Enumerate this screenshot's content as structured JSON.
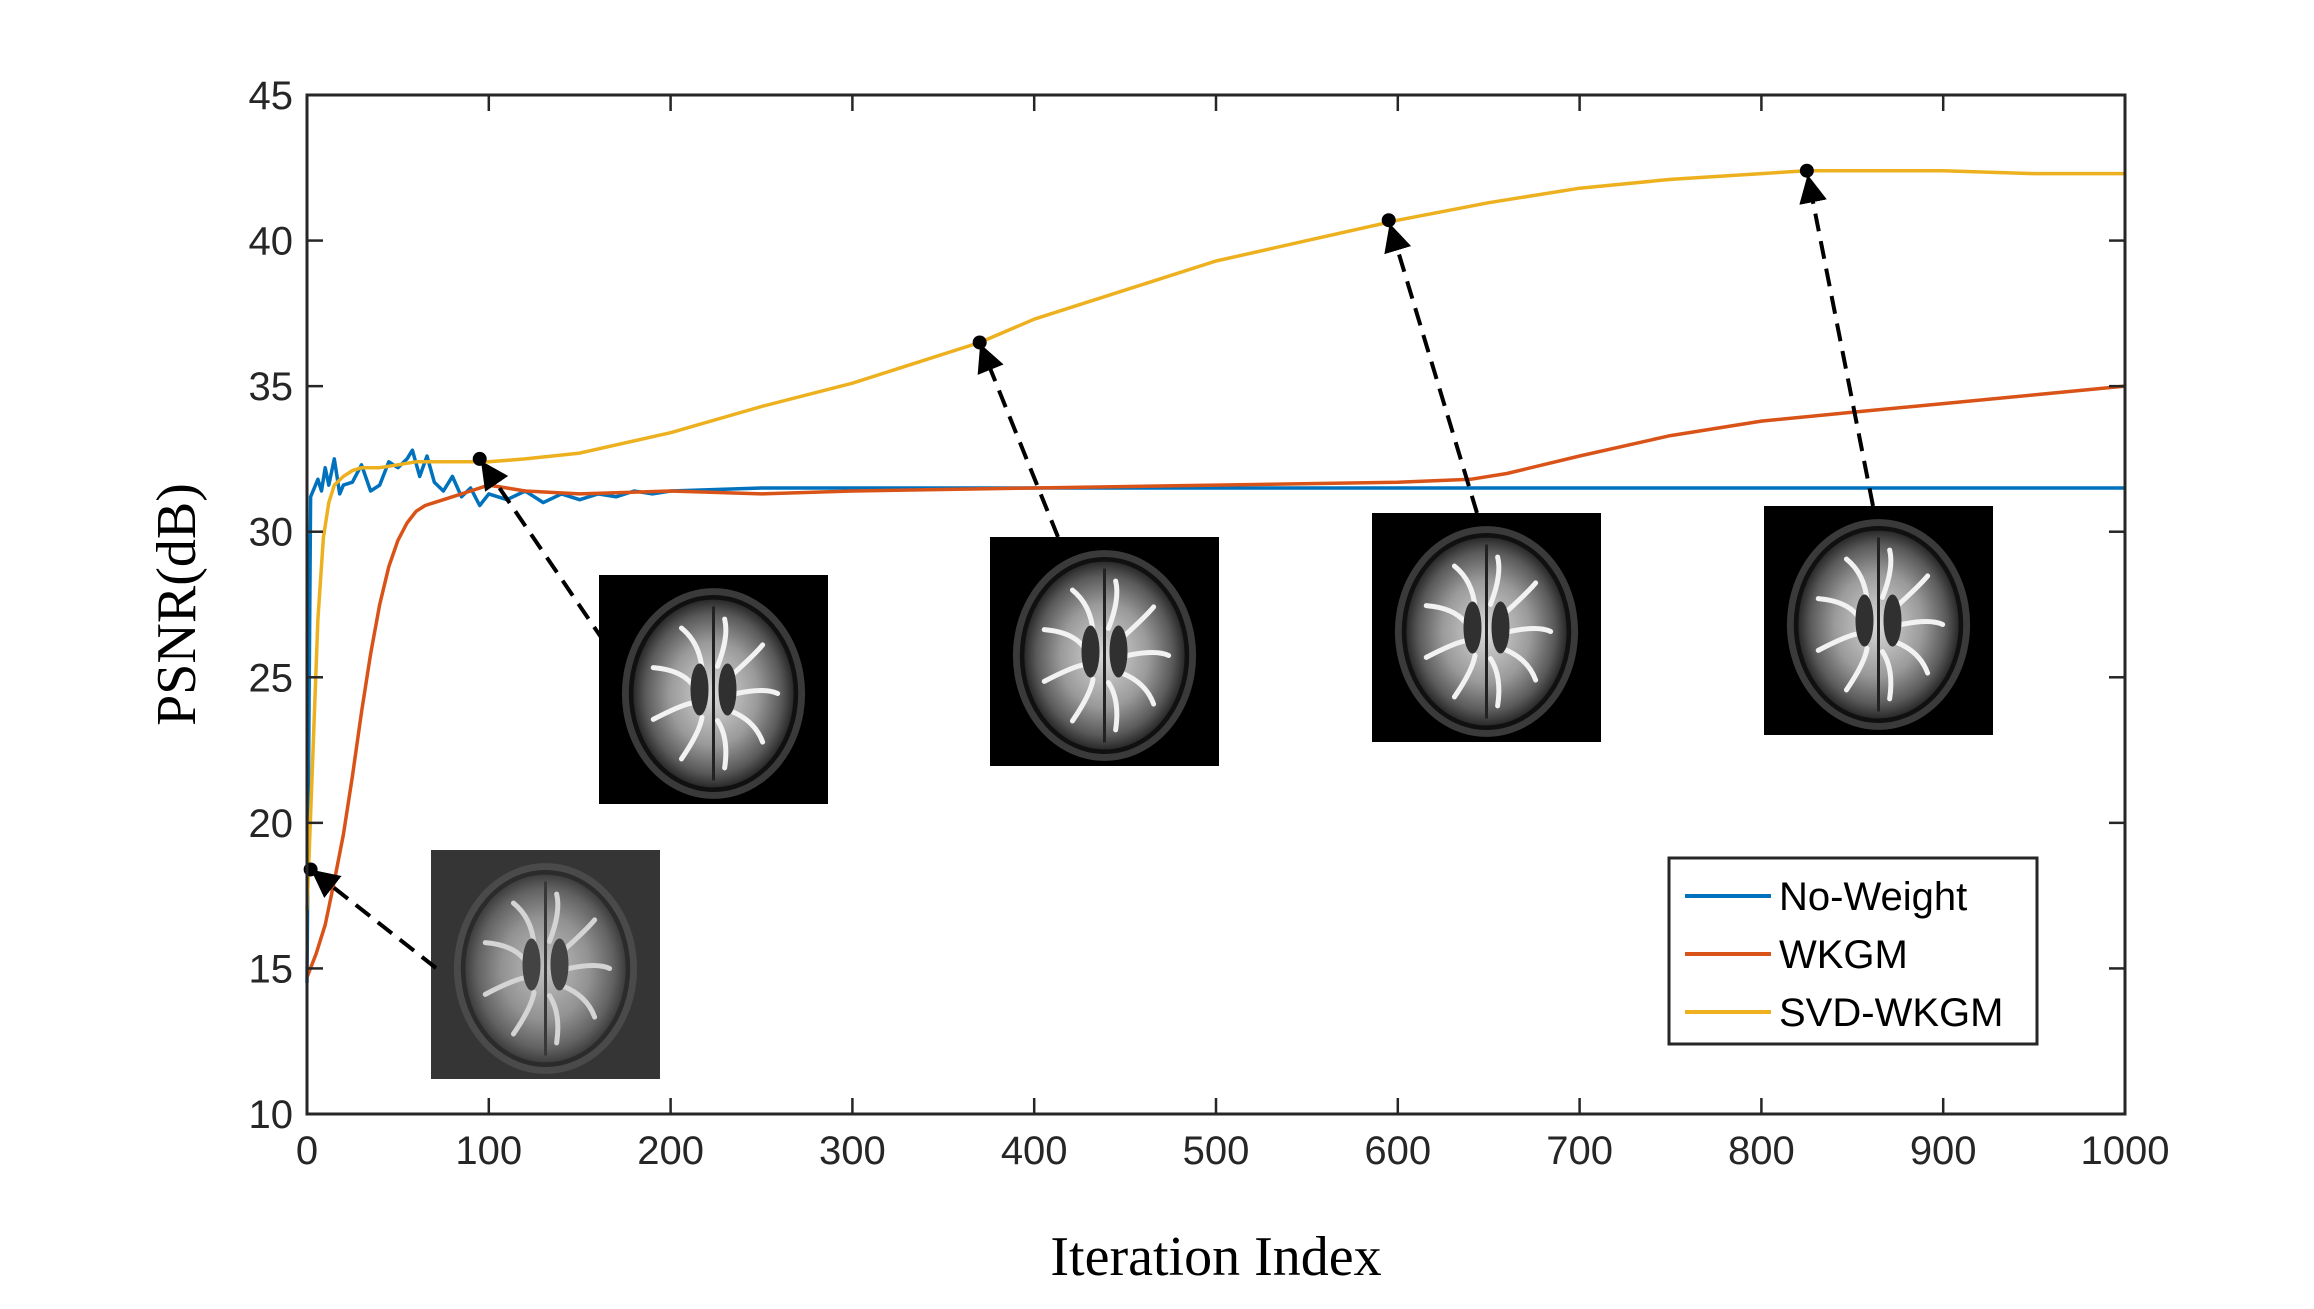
{
  "chart_data": {
    "type": "line",
    "title": "",
    "xlabel": "Iteration Index",
    "ylabel": "PSNR(dB)",
    "xlim": [
      0,
      1000
    ],
    "ylim": [
      10,
      45
    ],
    "xticks": [
      0,
      100,
      200,
      300,
      400,
      500,
      600,
      700,
      800,
      900,
      1000
    ],
    "yticks": [
      10,
      15,
      20,
      25,
      30,
      35,
      40,
      45
    ],
    "grid": false,
    "legend_position": "bottom-right",
    "series": [
      {
        "name": "No-Weight",
        "color": "#0072BD",
        "x": [
          0,
          2,
          4,
          6,
          8,
          10,
          12,
          15,
          18,
          20,
          25,
          30,
          35,
          40,
          45,
          50,
          55,
          58,
          62,
          66,
          70,
          75,
          80,
          85,
          90,
          95,
          100,
          110,
          120,
          130,
          140,
          150,
          160,
          170,
          180,
          190,
          200,
          250,
          300,
          400,
          500,
          600,
          700,
          800,
          900,
          1000
        ],
        "y": [
          14.5,
          31.2,
          31.5,
          31.8,
          31.4,
          32.2,
          31.6,
          32.5,
          31.3,
          31.6,
          31.7,
          32.3,
          31.4,
          31.6,
          32.4,
          32.2,
          32.5,
          32.8,
          31.9,
          32.6,
          31.7,
          31.4,
          31.9,
          31.2,
          31.5,
          30.9,
          31.3,
          31.1,
          31.4,
          31.0,
          31.3,
          31.1,
          31.3,
          31.2,
          31.4,
          31.3,
          31.4,
          31.5,
          31.5,
          31.5,
          31.5,
          31.5,
          31.5,
          31.5,
          31.5,
          31.5
        ]
      },
      {
        "name": "WKGM",
        "color": "#D95319",
        "x": [
          0,
          5,
          10,
          15,
          20,
          25,
          30,
          35,
          40,
          45,
          50,
          55,
          60,
          65,
          70,
          75,
          80,
          90,
          100,
          110,
          120,
          150,
          200,
          250,
          300,
          400,
          500,
          600,
          640,
          660,
          700,
          750,
          800,
          850,
          900,
          950,
          1000
        ],
        "y": [
          14.7,
          15.5,
          16.5,
          18.0,
          19.6,
          21.6,
          23.8,
          25.8,
          27.5,
          28.8,
          29.7,
          30.3,
          30.7,
          30.9,
          31.0,
          31.1,
          31.2,
          31.4,
          31.6,
          31.5,
          31.4,
          31.3,
          31.4,
          31.3,
          31.4,
          31.5,
          31.6,
          31.7,
          31.8,
          32.0,
          32.6,
          33.3,
          33.8,
          34.1,
          34.4,
          34.7,
          35.0
        ]
      },
      {
        "name": "SVD-WKGM",
        "color": "#EDB120",
        "x": [
          0,
          3,
          6,
          9,
          12,
          15,
          20,
          25,
          30,
          40,
          50,
          60,
          70,
          80,
          90,
          100,
          120,
          150,
          200,
          250,
          300,
          370,
          400,
          450,
          500,
          550,
          600,
          650,
          700,
          750,
          800,
          825,
          850,
          900,
          950,
          1000
        ],
        "y": [
          17.0,
          22.0,
          27.0,
          29.8,
          31.0,
          31.6,
          31.9,
          32.1,
          32.2,
          32.2,
          32.3,
          32.4,
          32.4,
          32.4,
          32.4,
          32.4,
          32.5,
          32.7,
          33.4,
          34.3,
          35.1,
          36.5,
          37.3,
          38.3,
          39.3,
          40.0,
          40.7,
          41.3,
          41.8,
          42.1,
          42.3,
          42.4,
          42.4,
          42.4,
          42.3,
          42.3
        ]
      }
    ],
    "annotations": [
      {
        "point": [
          2,
          18.4
        ],
        "inset": "brain-mri-noisy"
      },
      {
        "point": [
          95,
          32.5
        ],
        "inset": "brain-mri-1"
      },
      {
        "point": [
          370,
          36.5
        ],
        "inset": "brain-mri-2"
      },
      {
        "point": [
          595,
          40.7
        ],
        "inset": "brain-mri-3"
      },
      {
        "point": [
          825,
          42.4
        ],
        "inset": "brain-mri-4"
      }
    ]
  }
}
